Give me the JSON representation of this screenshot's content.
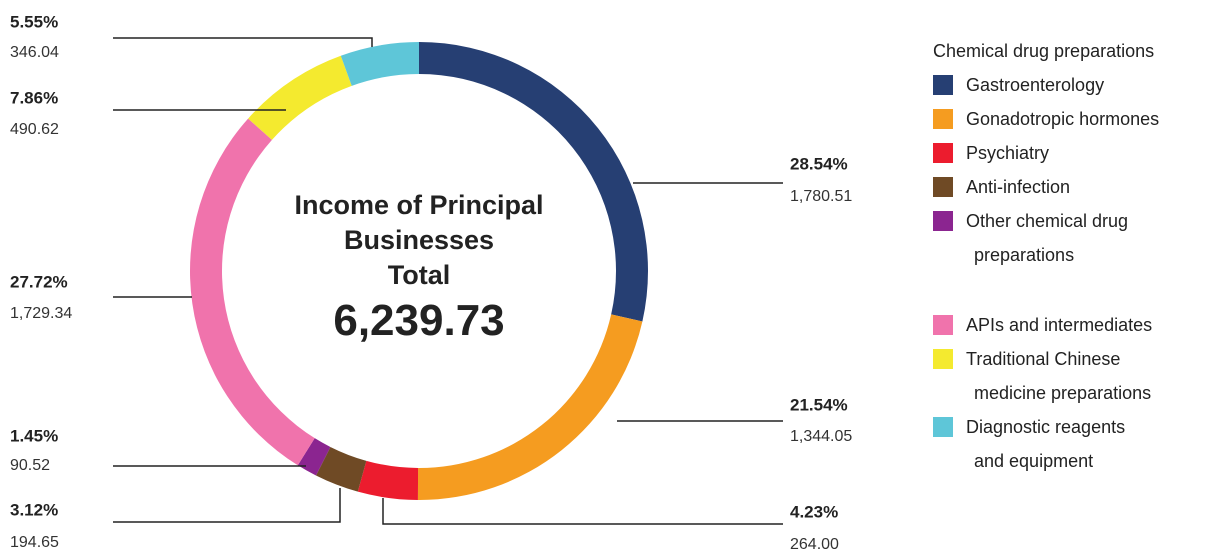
{
  "chart_data": {
    "type": "donut",
    "center_title": "Income of Principal\nBusinesses\nTotal",
    "total": 6239.73,
    "total_label": "6,239.73",
    "legend_title": "Chemical drug preparations",
    "categories": [
      "Gastroenterology",
      "Gonadotropic hormones",
      "Psychiatry",
      "Anti-infection",
      "Other chemical drug\npreparations",
      "APIs and intermediates",
      "Traditional Chinese\nmedicine preparations",
      "Diagnostic reagents\nand equipment"
    ],
    "values": [
      1780.51,
      1344.05,
      264.0,
      194.65,
      90.52,
      1729.34,
      490.62,
      346.04
    ],
    "value_labels": [
      "1,780.51",
      "1,344.05",
      "264.00",
      "194.65",
      "90.52",
      "1,729.34",
      "490.62",
      "346.04"
    ],
    "percent_labels": [
      "28.54%",
      "21.54%",
      "4.23%",
      "3.12%",
      "1.45%",
      "27.72%",
      "7.86%",
      "5.55%"
    ],
    "colors": [
      "#263f73",
      "#f59c20",
      "#ec1c2e",
      "#6f4a25",
      "#8b2590",
      "#f073ac",
      "#f4ea2f",
      "#5ec6d8"
    ],
    "legend_groups": [
      [
        0,
        1,
        2,
        3,
        4
      ],
      [
        5,
        6,
        7
      ]
    ]
  }
}
